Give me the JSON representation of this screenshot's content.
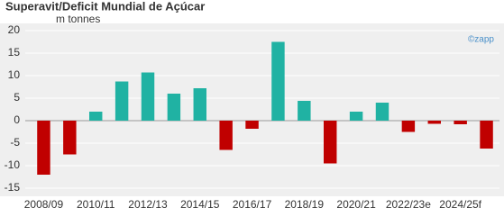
{
  "chart_data": {
    "type": "bar",
    "title": "Superavit/Deficit Mundial de Açúcar",
    "subtitle": "m tonnes",
    "logo": "©zapp",
    "categories": [
      "2008/09",
      null,
      "2010/11",
      null,
      "2012/13",
      null,
      "2014/15",
      null,
      "2016/17",
      null,
      "2018/19",
      null,
      "2020/21",
      null,
      "2022/23e",
      null,
      "2024/25f",
      null
    ],
    "values": [
      -12,
      -7.5,
      2,
      8.7,
      10.7,
      6,
      7.2,
      -6.5,
      -1.8,
      17.5,
      4.4,
      -9.5,
      2,
      4,
      -2.5,
      -0.7,
      -0.8,
      -6.2
    ],
    "positive_color": "#20b2a3",
    "negative_color": "#c00000",
    "ylim": [
      -15,
      20
    ],
    "yticks": [
      -15,
      -10,
      -5,
      0,
      5,
      10,
      15,
      20
    ],
    "grid": true
  }
}
